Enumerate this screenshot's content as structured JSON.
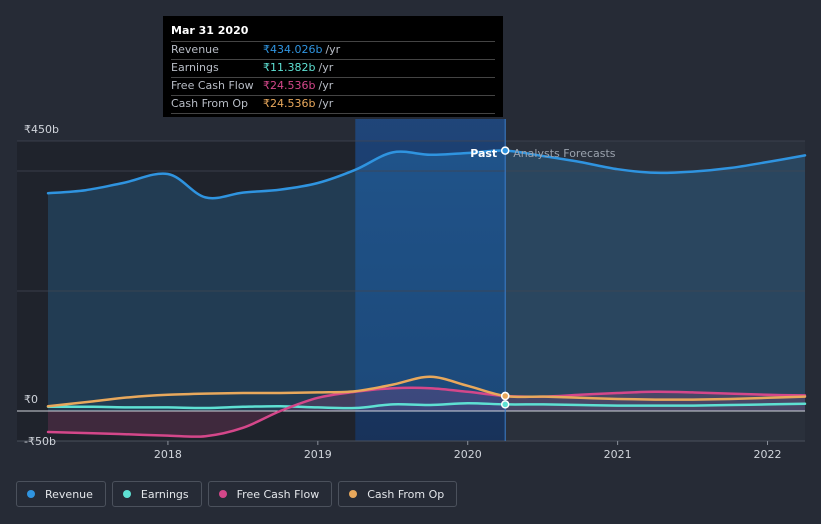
{
  "colors": {
    "revenue": "#2f94e0",
    "earnings": "#5ee0d3",
    "free_cash_flow": "#d4478a",
    "cash_from_op": "#e8a85c",
    "background": "#262b36"
  },
  "tooltip": {
    "date": "Mar 31 2020",
    "rows": [
      {
        "label": "Revenue",
        "value": "₹434.026b",
        "unit": "/yr",
        "color": "#2f94e0"
      },
      {
        "label": "Earnings",
        "value": "₹11.382b",
        "unit": "/yr",
        "color": "#5ee0d3"
      },
      {
        "label": "Free Cash Flow",
        "value": "₹24.536b",
        "unit": "/yr",
        "color": "#d4478a"
      },
      {
        "label": "Cash From Op",
        "value": "₹24.536b",
        "unit": "/yr",
        "color": "#e8a85c"
      }
    ]
  },
  "chart_data": {
    "type": "line",
    "x_range": [
      2017.2,
      2022.25
    ],
    "ylim": [
      -50,
      450
    ],
    "y_ticks": [
      {
        "value": 450,
        "label": "₹450b"
      },
      {
        "value": 0,
        "label": "₹0"
      },
      {
        "value": -50,
        "label": "-₹50b"
      }
    ],
    "x_ticks": [
      {
        "value": 2018,
        "label": "2018"
      },
      {
        "value": 2019,
        "label": "2019"
      },
      {
        "value": 2020,
        "label": "2020"
      },
      {
        "value": 2021,
        "label": "2021"
      },
      {
        "value": 2022,
        "label": "2022"
      }
    ],
    "past_label": "Past",
    "forecast_label": "Analysts Forecasts",
    "highlight_range": [
      2019.25,
      2020.25
    ],
    "divider_x": 2020.25,
    "series": [
      {
        "name": "Revenue",
        "key": "revenue",
        "color": "#2f94e0",
        "area": true,
        "x": [
          2017.2,
          2017.45,
          2017.7,
          2018.0,
          2018.25,
          2018.5,
          2018.75,
          2019.0,
          2019.25,
          2019.5,
          2019.75,
          2020.0,
          2020.25,
          2020.5,
          2020.75,
          2021.0,
          2021.25,
          2021.5,
          2021.75,
          2022.0,
          2022.25
        ],
        "y": [
          363,
          368,
          380,
          395,
          356,
          364,
          369,
          380,
          402,
          431,
          427,
          430,
          434,
          425,
          415,
          403,
          397,
          399,
          405,
          415,
          426
        ]
      },
      {
        "name": "Earnings",
        "key": "earnings",
        "color": "#5ee0d3",
        "area": false,
        "x": [
          2017.2,
          2017.5,
          2017.75,
          2018.0,
          2018.25,
          2018.5,
          2018.75,
          2019.0,
          2019.25,
          2019.5,
          2019.75,
          2020.0,
          2020.25,
          2020.5,
          2020.75,
          2021.0,
          2021.25,
          2021.5,
          2021.75,
          2022.0,
          2022.25
        ],
        "y": [
          7,
          7,
          6,
          6,
          5,
          7,
          8,
          6,
          5,
          11,
          10,
          13,
          11,
          11,
          10,
          9,
          9,
          9,
          10,
          11,
          12
        ]
      },
      {
        "name": "Free Cash Flow",
        "key": "free_cash_flow",
        "color": "#d4478a",
        "area": true,
        "x": [
          2017.2,
          2017.5,
          2017.75,
          2018.0,
          2018.25,
          2018.5,
          2018.75,
          2019.0,
          2019.25,
          2019.5,
          2019.75,
          2020.0,
          2020.25,
          2020.5,
          2020.75,
          2021.0,
          2021.25,
          2021.5,
          2021.75,
          2022.0,
          2022.25
        ],
        "y": [
          -35,
          -37,
          -39,
          -41,
          -42,
          -28,
          0,
          22,
          32,
          38,
          38,
          32,
          25,
          24,
          27,
          30,
          32,
          31,
          29,
          27,
          26
        ]
      },
      {
        "name": "Cash From Op",
        "key": "cash_from_op",
        "color": "#e8a85c",
        "area": false,
        "x": [
          2017.2,
          2017.5,
          2017.75,
          2018.0,
          2018.25,
          2018.5,
          2018.75,
          2019.0,
          2019.25,
          2019.5,
          2019.75,
          2020.0,
          2020.25,
          2020.5,
          2020.75,
          2021.0,
          2021.25,
          2021.5,
          2021.75,
          2022.0,
          2022.25
        ],
        "y": [
          8,
          16,
          23,
          27,
          29,
          30,
          30,
          31,
          33,
          44,
          57,
          42,
          25,
          24,
          22,
          20,
          19,
          19,
          20,
          22,
          24
        ]
      }
    ]
  },
  "legend": [
    {
      "label": "Revenue",
      "color": "#2f94e0"
    },
    {
      "label": "Earnings",
      "color": "#5ee0d3"
    },
    {
      "label": "Free Cash Flow",
      "color": "#d4478a"
    },
    {
      "label": "Cash From Op",
      "color": "#e8a85c"
    }
  ]
}
